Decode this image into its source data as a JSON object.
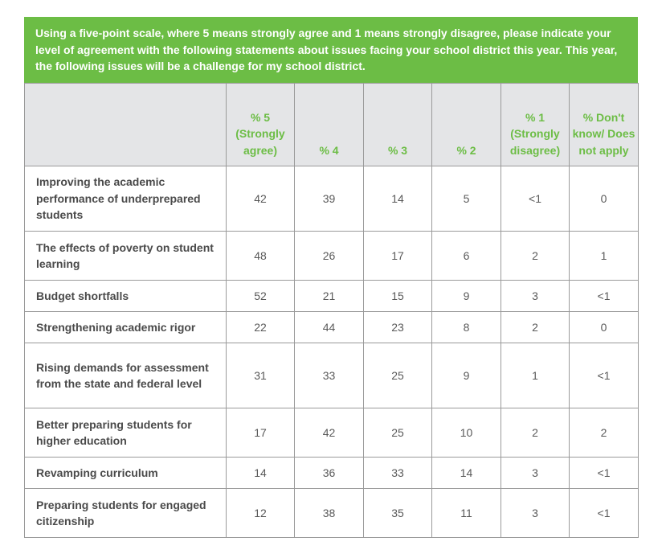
{
  "banner": {
    "text": "Using a five-point scale, where 5 means strongly agree and 1 means strongly disagree, please indicate your level of agreement with the following statements about issues facing your school district this year. This year, the following issues will be a challenge for my school district."
  },
  "chart_data": {
    "type": "table",
    "title": "Using a five-point scale, where 5 means strongly agree and 1 means strongly disagree, please indicate your level of agreement with the following statements about issues facing your school district this year. This year, the following issues will be a challenge for my school district.",
    "columns": [
      "",
      "% 5 (Strongly agree)",
      "% 4",
      "% 3",
      "% 2",
      "% 1 (Strongly disagree)",
      "% Don't know/ Does not apply"
    ],
    "rows": [
      {
        "label": "Improving the academic performance of underprepared students",
        "values": [
          "42",
          "39",
          "14",
          "5",
          "<1",
          "0"
        ]
      },
      {
        "label": "The effects of poverty on student learning",
        "values": [
          "48",
          "26",
          "17",
          "6",
          "2",
          "1"
        ]
      },
      {
        "label": "Budget shortfalls",
        "values": [
          "52",
          "21",
          "15",
          "9",
          "3",
          "<1"
        ]
      },
      {
        "label": "Strengthening academic rigor",
        "values": [
          "22",
          "44",
          "23",
          "8",
          "2",
          "0"
        ]
      },
      {
        "label": "Rising demands for assessment from the state and federal level",
        "values": [
          "31",
          "33",
          "25",
          "9",
          "1",
          "<1"
        ]
      },
      {
        "label": "Better preparing students for higher education",
        "values": [
          "17",
          "42",
          "25",
          "10",
          "2",
          "2"
        ]
      },
      {
        "label": "Revamping curriculum",
        "values": [
          "14",
          "36",
          "33",
          "14",
          "3",
          "<1"
        ]
      },
      {
        "label": "Preparing students for engaged citizenship",
        "values": [
          "12",
          "38",
          "35",
          "11",
          "3",
          "<1"
        ]
      }
    ]
  },
  "colors": {
    "banner_bg": "#6cbd45",
    "header_bg": "#e4e5e7",
    "header_text": "#6cbd45",
    "border": "#9a9a9a",
    "label_text": "#4a4a4a",
    "value_text": "#595959"
  }
}
